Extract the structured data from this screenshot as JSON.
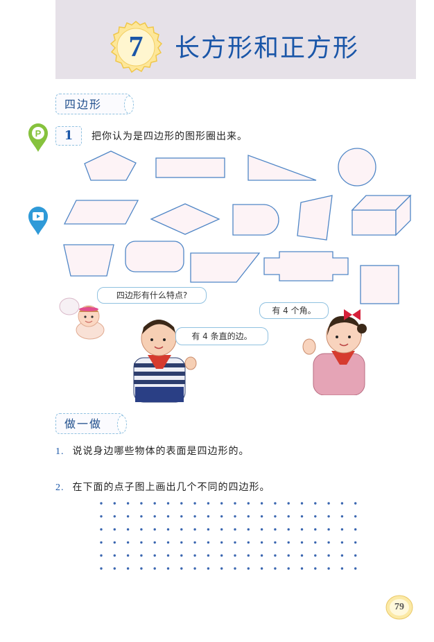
{
  "header": {
    "chapter_number": "7",
    "chapter_title": "长方形和正方形"
  },
  "section": {
    "title": "四边形"
  },
  "problem": {
    "number": "1",
    "text": "把你认为是四边形的图形圈出来。"
  },
  "shapes": [
    "pentagon-shape",
    "rectangle-shape",
    "right-triangle-shape",
    "circle-shape",
    "parallelogram-shape",
    "rhombus-shape",
    "arch-shape",
    "irregular-quadrilateral-shape",
    "cuboid-shape",
    "trapezoid-shape",
    "rounded-rectangle-shape",
    "right-trapezoid-shape",
    "cross-shape",
    "square-shape"
  ],
  "dialogue": {
    "angel": "四边形有什么特点?",
    "boy": "有 4 条直的边。",
    "girl": "有 4 个角。"
  },
  "do_it": {
    "title": "做一做",
    "exercises": [
      {
        "number": "1.",
        "text": "说说身边哪些物体的表面是四边形的。"
      },
      {
        "number": "2.",
        "text": "在下面的点子图上画出几个不同的四边形。"
      }
    ]
  },
  "dot_grid": {
    "rows": 6,
    "cols": 20
  },
  "page_number": "79",
  "colors": {
    "title_blue": "#1a56a8",
    "header_band": "#e6e1e8",
    "shape_fill": "#fdf3f6",
    "shape_stroke": "#4f86c6",
    "dot_blue": "#3a66b0",
    "badge_yellow": "#fbd96a"
  }
}
